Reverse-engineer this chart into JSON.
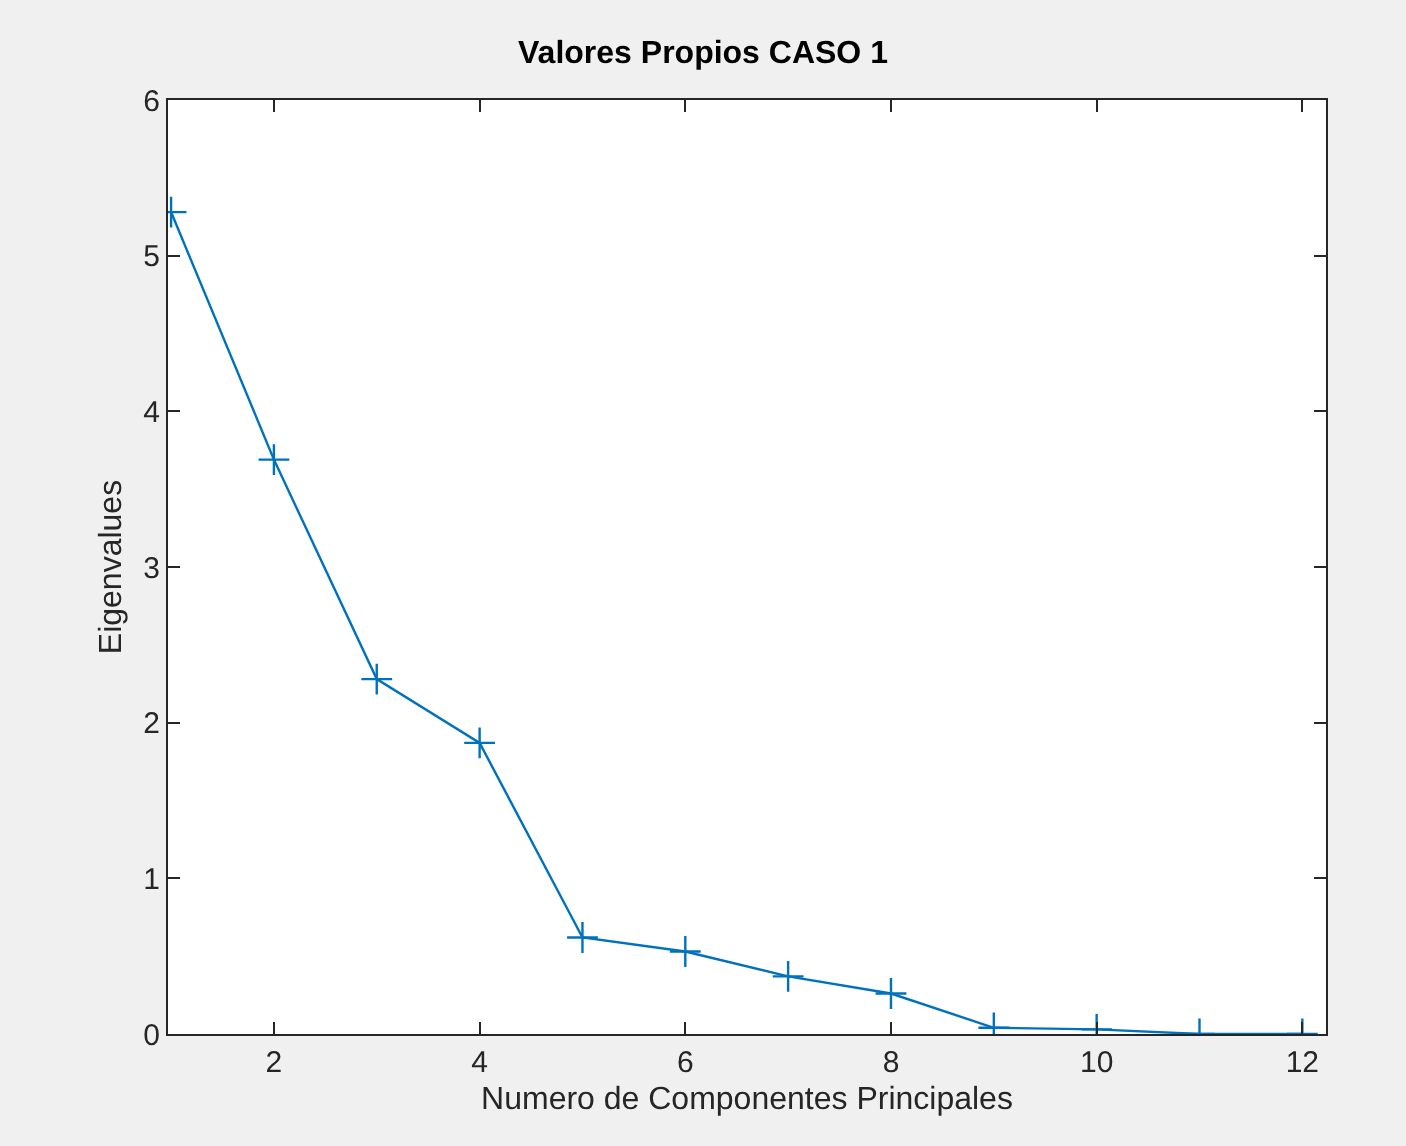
{
  "chart_data": {
    "type": "line",
    "title": "Valores Propios CASO 1",
    "xlabel": "Numero de Componentes Principales",
    "ylabel": "Eigenvalues",
    "x": [
      1,
      2,
      3,
      4,
      5,
      6,
      7,
      8,
      9,
      10,
      11,
      12
    ],
    "series": [
      {
        "color": "#0072bd",
        "values": [
          5.28,
          3.69,
          2.28,
          1.87,
          0.62,
          0.53,
          0.37,
          0.26,
          0.04,
          0.03,
          0.0,
          0.0
        ]
      }
    ],
    "xlim": [
      0.97,
      12.23
    ],
    "xticks": [
      2,
      4,
      6,
      8,
      10,
      12
    ],
    "ylim": [
      0,
      6
    ],
    "yticks": [
      0,
      1,
      2,
      3,
      4,
      5,
      6
    ],
    "marker": "cross",
    "line_style": "solid"
  }
}
